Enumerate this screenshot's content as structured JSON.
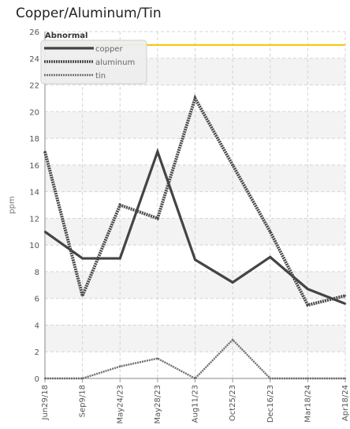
{
  "chart_data": {
    "type": "line",
    "title": "Copper/Aluminum/Tin",
    "xlabel": "",
    "ylabel": "ppm",
    "ylim": [
      0,
      26
    ],
    "yticks": [
      0,
      2,
      4,
      6,
      8,
      10,
      12,
      14,
      16,
      18,
      20,
      22,
      24,
      26
    ],
    "categories": [
      "Jun29/18",
      "Sep9/18",
      "May24/23",
      "May28/23",
      "Aug11/23",
      "Oct25/23",
      "Dec16/23",
      "Mar18/24",
      "Apr18/24"
    ],
    "series": [
      {
        "name": "copper",
        "values": [
          11,
          9,
          9,
          17,
          8.9,
          7.2,
          9.1,
          6.7,
          5.6
        ]
      },
      {
        "name": "aluminum",
        "values": [
          17,
          6.2,
          13,
          12,
          21,
          16,
          11,
          5.5,
          6.2
        ]
      },
      {
        "name": "tin",
        "values": [
          0,
          0,
          0.9,
          1.5,
          0,
          2.9,
          0,
          0,
          0
        ]
      }
    ],
    "threshold": {
      "label": "Abnormal",
      "value": 25,
      "color": "#f5c400"
    },
    "grid": true,
    "legend_position": "top-left",
    "colors": {
      "copper": "#444444",
      "aluminum": "#4a4a4a",
      "tin": "#6e6e6e"
    }
  }
}
